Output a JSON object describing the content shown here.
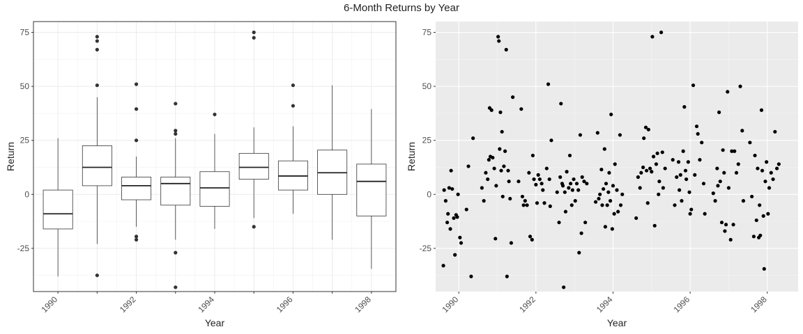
{
  "title": "6-Month Returns by Year",
  "chart_data": [
    {
      "type": "box",
      "xlabel": "Year",
      "ylabel": "Return",
      "ylim": [
        -45,
        80
      ],
      "yticks": [
        -25,
        0,
        25,
        50,
        75
      ],
      "xticks": [
        "1990",
        "1992",
        "1994",
        "1996",
        "1998"
      ],
      "grid": true,
      "boxes": [
        {
          "year": 1990,
          "q1": -16,
          "median": -9,
          "q3": 2,
          "whisker_low": -38,
          "whisker_high": 26,
          "outliers": []
        },
        {
          "year": 1991,
          "q1": 4,
          "median": 12.5,
          "q3": 22.5,
          "whisker_low": -23,
          "whisker_high": 45,
          "outliers": [
            73,
            71,
            67,
            50.5,
            -37.5
          ]
        },
        {
          "year": 1992,
          "q1": -2.5,
          "median": 4,
          "q3": 8,
          "whisker_low": -15,
          "whisker_high": 17.5,
          "outliers": [
            51,
            39.5,
            25,
            -19.5,
            -21
          ]
        },
        {
          "year": 1993,
          "q1": -5,
          "median": 5,
          "q3": 8,
          "whisker_low": -21,
          "whisker_high": 26,
          "outliers": [
            42,
            29.5,
            28,
            -27,
            -43
          ]
        },
        {
          "year": 1994,
          "q1": -5.5,
          "median": 3,
          "q3": 10.5,
          "whisker_low": -16,
          "whisker_high": 28,
          "outliers": [
            37
          ]
        },
        {
          "year": 1995,
          "q1": 7,
          "median": 12.5,
          "q3": 19,
          "whisker_low": -11,
          "whisker_high": 31,
          "outliers": [
            75,
            72.5,
            -15
          ]
        },
        {
          "year": 1996,
          "q1": 2,
          "median": 8.5,
          "q3": 15.5,
          "whisker_low": -9,
          "whisker_high": 31.5,
          "outliers": [
            50.5,
            41
          ]
        },
        {
          "year": 1997,
          "q1": 0,
          "median": 10,
          "q3": 20.5,
          "whisker_low": -21,
          "whisker_high": 50.5,
          "outliers": []
        },
        {
          "year": 1998,
          "q1": -10,
          "median": 6,
          "q3": 14,
          "whisker_low": -34.5,
          "whisker_high": 39.5,
          "outliers": []
        }
      ]
    },
    {
      "type": "scatter",
      "xlabel": "Year",
      "ylabel": "Return",
      "xlim": [
        1989.4,
        1998.8
      ],
      "ylim": [
        -45,
        80
      ],
      "yticks": [
        -25,
        0,
        25,
        50,
        75
      ],
      "xticks": [
        "1990",
        "1992",
        "1994",
        "1996",
        "1998"
      ],
      "grid": true,
      "points": [
        [
          1989.6,
          -33
        ],
        [
          1989.62,
          2
        ],
        [
          1989.66,
          -3
        ],
        [
          1989.7,
          -13
        ],
        [
          1989.72,
          -9
        ],
        [
          1989.75,
          3
        ],
        [
          1989.78,
          -16
        ],
        [
          1989.8,
          11
        ],
        [
          1989.83,
          2.5
        ],
        [
          1989.87,
          -11
        ],
        [
          1989.9,
          -28
        ],
        [
          1989.93,
          -9.5
        ],
        [
          1989.96,
          -10.5
        ],
        [
          1989.98,
          0
        ],
        [
          1990.03,
          -20
        ],
        [
          1990.06,
          -22.5
        ],
        [
          1990.2,
          -7
        ],
        [
          1990.25,
          13
        ],
        [
          1990.32,
          -38
        ],
        [
          1990.37,
          26
        ],
        [
          1990.6,
          3
        ],
        [
          1990.65,
          -3
        ],
        [
          1990.7,
          10
        ],
        [
          1990.75,
          7
        ],
        [
          1990.78,
          16
        ],
        [
          1990.8,
          40
        ],
        [
          1990.82,
          17.5
        ],
        [
          1990.85,
          39
        ],
        [
          1990.88,
          17
        ],
        [
          1990.92,
          12
        ],
        [
          1990.95,
          -20.5
        ],
        [
          1990.97,
          4
        ],
        [
          1991.02,
          73
        ],
        [
          1991.04,
          71
        ],
        [
          1991.06,
          21
        ],
        [
          1991.08,
          38
        ],
        [
          1991.1,
          11
        ],
        [
          1991.12,
          29
        ],
        [
          1991.14,
          -1
        ],
        [
          1991.17,
          13
        ],
        [
          1991.2,
          20
        ],
        [
          1991.23,
          67
        ],
        [
          1991.25,
          -38
        ],
        [
          1991.28,
          11
        ],
        [
          1991.3,
          6
        ],
        [
          1991.33,
          -2
        ],
        [
          1991.36,
          -22.5
        ],
        [
          1991.4,
          45
        ],
        [
          1991.55,
          6
        ],
        [
          1991.62,
          39.5
        ],
        [
          1991.65,
          -1
        ],
        [
          1991.68,
          -5
        ],
        [
          1991.72,
          -3
        ],
        [
          1991.77,
          -5
        ],
        [
          1991.82,
          10
        ],
        [
          1991.85,
          -19.5
        ],
        [
          1991.9,
          -21
        ],
        [
          1991.92,
          18
        ],
        [
          1991.95,
          7
        ],
        [
          1992.0,
          4.5
        ],
        [
          1992.03,
          -4
        ],
        [
          1992.06,
          9
        ],
        [
          1992.1,
          7
        ],
        [
          1992.15,
          5
        ],
        [
          1992.18,
          2
        ],
        [
          1992.22,
          -4
        ],
        [
          1992.28,
          12
        ],
        [
          1992.32,
          51
        ],
        [
          1992.35,
          7
        ],
        [
          1992.37,
          -5.5
        ],
        [
          1992.4,
          25
        ],
        [
          1992.55,
          1
        ],
        [
          1992.6,
          -13
        ],
        [
          1992.63,
          8
        ],
        [
          1992.65,
          42
        ],
        [
          1992.68,
          5
        ],
        [
          1992.7,
          4
        ],
        [
          1992.72,
          -43
        ],
        [
          1992.75,
          1
        ],
        [
          1992.77,
          -8
        ],
        [
          1992.8,
          10.5
        ],
        [
          1992.85,
          3
        ],
        [
          1992.88,
          18
        ],
        [
          1992.9,
          5
        ],
        [
          1992.93,
          -5
        ],
        [
          1992.95,
          2
        ],
        [
          1992.98,
          7
        ],
        [
          1993.02,
          -3
        ],
        [
          1993.06,
          5
        ],
        [
          1993.1,
          2
        ],
        [
          1993.12,
          -27
        ],
        [
          1993.15,
          27.5
        ],
        [
          1993.18,
          -18
        ],
        [
          1993.2,
          8
        ],
        [
          1993.25,
          6
        ],
        [
          1993.28,
          -13
        ],
        [
          1993.32,
          5
        ],
        [
          1993.55,
          -3.5
        ],
        [
          1993.6,
          28.5
        ],
        [
          1993.63,
          -2
        ],
        [
          1993.66,
          0
        ],
        [
          1993.7,
          11.5
        ],
        [
          1993.72,
          -5
        ],
        [
          1993.75,
          2.5
        ],
        [
          1993.78,
          21
        ],
        [
          1993.8,
          -15
        ],
        [
          1993.82,
          5
        ],
        [
          1993.85,
          -5
        ],
        [
          1993.88,
          1
        ],
        [
          1993.9,
          10
        ],
        [
          1993.93,
          -3
        ],
        [
          1993.95,
          37
        ],
        [
          1993.98,
          -16
        ],
        [
          1994.0,
          4
        ],
        [
          1994.03,
          -9
        ],
        [
          1994.05,
          14
        ],
        [
          1994.1,
          2
        ],
        [
          1994.13,
          -8
        ],
        [
          1994.18,
          27.5
        ],
        [
          1994.2,
          -5
        ],
        [
          1994.24,
          0
        ],
        [
          1994.6,
          -11
        ],
        [
          1994.65,
          8
        ],
        [
          1994.7,
          3
        ],
        [
          1994.73,
          10
        ],
        [
          1994.78,
          12.5
        ],
        [
          1994.8,
          26
        ],
        [
          1994.85,
          31
        ],
        [
          1994.87,
          11
        ],
        [
          1994.9,
          -4
        ],
        [
          1994.92,
          30
        ],
        [
          1994.96,
          12
        ],
        [
          1995.0,
          10.5
        ],
        [
          1995.02,
          73
        ],
        [
          1995.05,
          17.5
        ],
        [
          1995.08,
          -14.5
        ],
        [
          1995.12,
          14
        ],
        [
          1995.15,
          19
        ],
        [
          1995.18,
          0
        ],
        [
          1995.2,
          6
        ],
        [
          1995.25,
          75
        ],
        [
          1995.28,
          19.5
        ],
        [
          1995.3,
          3
        ],
        [
          1995.35,
          12
        ],
        [
          1995.55,
          16
        ],
        [
          1995.6,
          -5
        ],
        [
          1995.65,
          8
        ],
        [
          1995.7,
          15
        ],
        [
          1995.72,
          2
        ],
        [
          1995.75,
          9
        ],
        [
          1995.78,
          -3
        ],
        [
          1995.82,
          20
        ],
        [
          1995.85,
          40.5
        ],
        [
          1995.88,
          11
        ],
        [
          1995.9,
          7
        ],
        [
          1995.95,
          15
        ],
        [
          1995.98,
          1
        ],
        [
          1996.0,
          -9
        ],
        [
          1996.03,
          -7
        ],
        [
          1996.08,
          50.5
        ],
        [
          1996.12,
          9
        ],
        [
          1996.17,
          31.5
        ],
        [
          1996.2,
          28
        ],
        [
          1996.25,
          16
        ],
        [
          1996.3,
          24
        ],
        [
          1996.35,
          5
        ],
        [
          1996.38,
          -9
        ],
        [
          1996.6,
          0.5
        ],
        [
          1996.65,
          -3
        ],
        [
          1996.7,
          12
        ],
        [
          1996.72,
          4
        ],
        [
          1996.75,
          38
        ],
        [
          1996.78,
          6
        ],
        [
          1996.82,
          -13
        ],
        [
          1996.85,
          20.5
        ],
        [
          1996.88,
          10
        ],
        [
          1996.9,
          -17
        ],
        [
          1996.93,
          -14
        ],
        [
          1996.97,
          47.5
        ],
        [
          1997.0,
          3
        ],
        [
          1997.05,
          -21
        ],
        [
          1997.08,
          20
        ],
        [
          1997.12,
          -14
        ],
        [
          1997.15,
          20
        ],
        [
          1997.2,
          10
        ],
        [
          1997.25,
          14
        ],
        [
          1997.3,
          50
        ],
        [
          1997.35,
          29.5
        ],
        [
          1997.38,
          -3
        ],
        [
          1997.55,
          24
        ],
        [
          1997.6,
          -1
        ],
        [
          1997.65,
          -19.5
        ],
        [
          1997.68,
          18
        ],
        [
          1997.72,
          -12
        ],
        [
          1997.75,
          12
        ],
        [
          1997.78,
          -20
        ],
        [
          1997.8,
          -5
        ],
        [
          1997.82,
          -19
        ],
        [
          1997.85,
          39
        ],
        [
          1997.87,
          11
        ],
        [
          1997.9,
          -10
        ],
        [
          1997.92,
          -34.5
        ],
        [
          1997.95,
          6
        ],
        [
          1997.98,
          15
        ],
        [
          1998.02,
          -9
        ],
        [
          1998.05,
          3
        ],
        [
          1998.1,
          10
        ],
        [
          1998.15,
          7
        ],
        [
          1998.2,
          29
        ],
        [
          1998.25,
          12
        ],
        [
          1998.3,
          14
        ]
      ]
    }
  ]
}
